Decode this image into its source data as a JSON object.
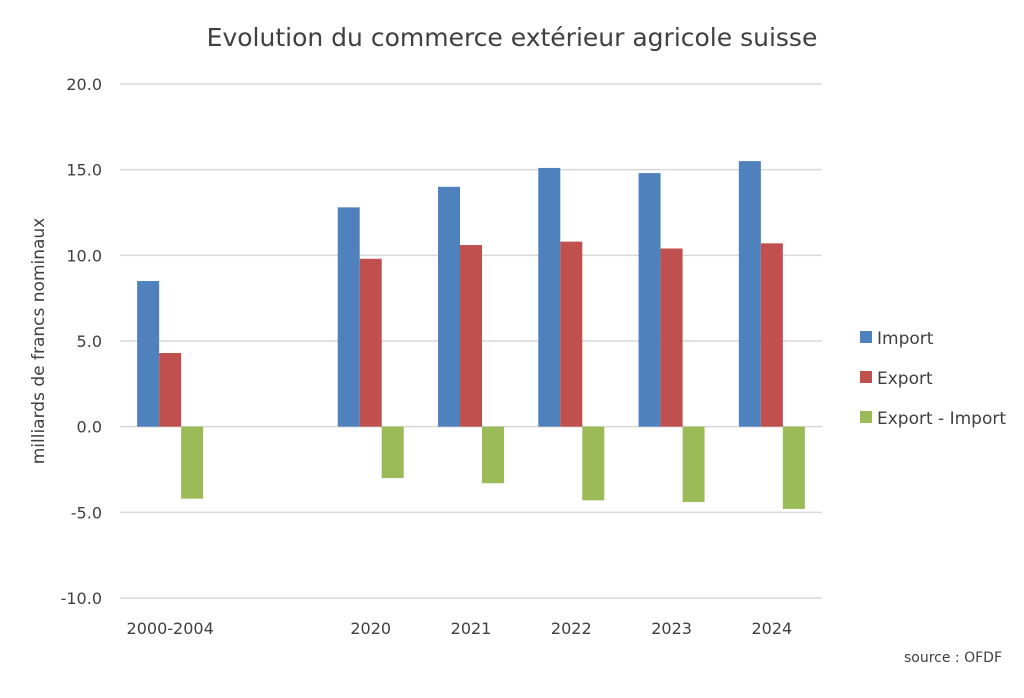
{
  "chart_data": {
    "type": "bar",
    "title": "Evolution du commerce extérieur agricole suisse",
    "ylabel": "milliards de francs nominaux",
    "xlabel": "",
    "ylim": [
      -10,
      20
    ],
    "yticks": [
      "20.0",
      "15.0",
      "10.0",
      "5.0",
      "0.0",
      "-5.0",
      "-10.0"
    ],
    "ytick_values": [
      20,
      15,
      10,
      5,
      0,
      -5,
      -10
    ],
    "grid": true,
    "legend_position": "right",
    "categories": [
      "2000-2004",
      "",
      "2020",
      "2021",
      "2022",
      "2023",
      "2024"
    ],
    "series": [
      {
        "name": "Import",
        "color": "#4f81bd",
        "values": [
          8.5,
          null,
          12.8,
          14.0,
          15.1,
          14.8,
          15.5
        ]
      },
      {
        "name": "Export",
        "color": "#c0504d",
        "values": [
          4.3,
          null,
          9.8,
          10.6,
          10.8,
          10.4,
          10.7
        ]
      },
      {
        "name": "Export - Import",
        "color": "#9bbb59",
        "values": [
          -4.2,
          null,
          -3.0,
          -3.3,
          -4.3,
          -4.4,
          -4.8
        ]
      }
    ],
    "source": "source : OFDF"
  }
}
